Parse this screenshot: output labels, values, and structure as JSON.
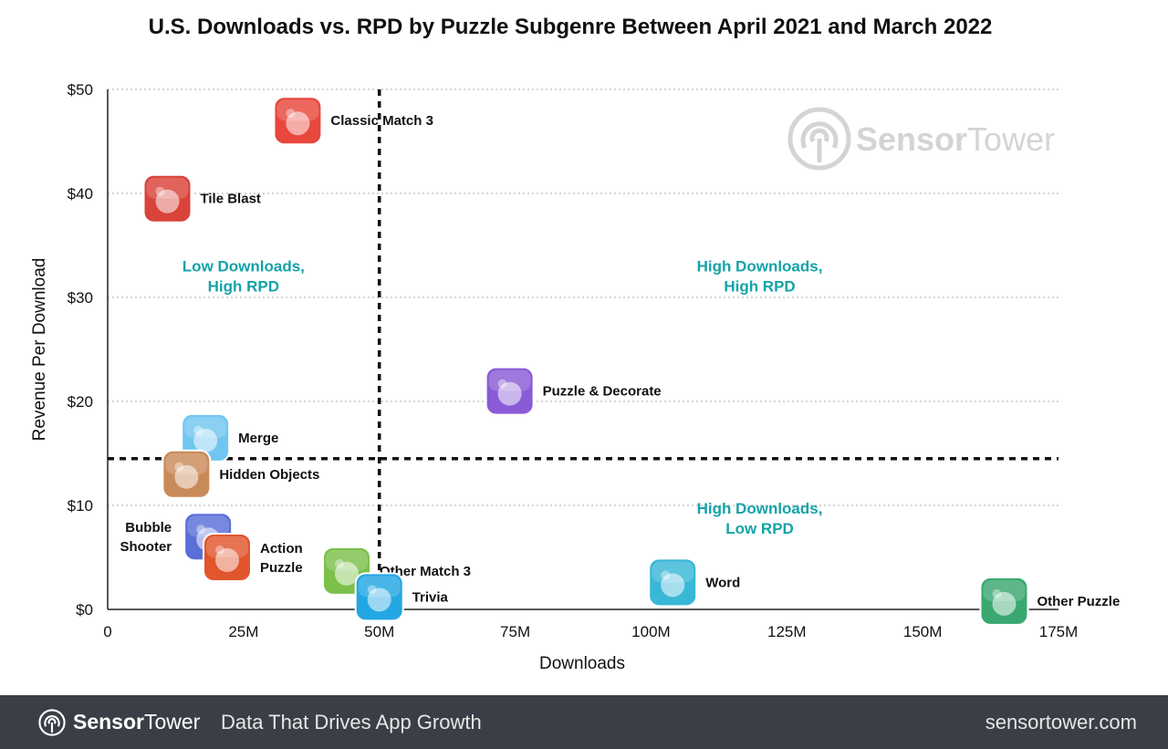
{
  "colors": {
    "quadrant_label": "#14a3a8",
    "grid": "#bbbbbb",
    "footer_bg": "#3a3f47",
    "watermark": "#d4d4d4"
  },
  "chart_data": {
    "type": "scatter",
    "title": "U.S. Downloads vs. RPD by Puzzle Subgenre Between April 2021 and March 2022",
    "xlabel": "Downloads",
    "ylabel": "Revenue Per Download",
    "xlim": [
      0,
      175000000
    ],
    "ylim": [
      0,
      50
    ],
    "x_ticks": [
      {
        "value": 0,
        "label": "0"
      },
      {
        "value": 25000000,
        "label": "25M"
      },
      {
        "value": 50000000,
        "label": "50M"
      },
      {
        "value": 75000000,
        "label": "75M"
      },
      {
        "value": 100000000,
        "label": "100M"
      },
      {
        "value": 125000000,
        "label": "125M"
      },
      {
        "value": 150000000,
        "label": "150M"
      },
      {
        "value": 175000000,
        "label": "175M"
      }
    ],
    "y_ticks": [
      {
        "value": 0,
        "label": "$0"
      },
      {
        "value": 10,
        "label": "$10"
      },
      {
        "value": 20,
        "label": "$20"
      },
      {
        "value": 30,
        "label": "$30"
      },
      {
        "value": 40,
        "label": "$40"
      },
      {
        "value": 50,
        "label": "$50"
      }
    ],
    "grid": "horizontal dotted",
    "divider_x": 50000000,
    "divider_y": 14.5,
    "points": [
      {
        "name": "Classic Match 3",
        "x": 35000000,
        "y": 47,
        "icon": "candy-icon",
        "color": "#e8473c",
        "label_side": "right"
      },
      {
        "name": "Tile Blast",
        "x": 11000000,
        "y": 39.5,
        "icon": "bear-icon",
        "color": "#d9433a",
        "label_side": "right"
      },
      {
        "name": "Puzzle & Decorate",
        "x": 74000000,
        "y": 21,
        "icon": "butler-icon",
        "color": "#8a5bd6",
        "label_side": "right"
      },
      {
        "name": "Merge",
        "x": 18000000,
        "y": 16.5,
        "icon": "egg-icon",
        "color": "#6fc6f0",
        "label_side": "right"
      },
      {
        "name": "Hidden Objects",
        "x": 14500000,
        "y": 13,
        "icon": "detective-icon",
        "color": "#c98a5a",
        "label_side": "right"
      },
      {
        "name": "Bubble Shooter",
        "x": 18500000,
        "y": 7,
        "icon": "bubble-icon",
        "color": "#5a6fd8",
        "label_side": "left"
      },
      {
        "name": "Action Puzzle",
        "x": 22000000,
        "y": 5,
        "icon": "bird-icon",
        "color": "#e1562d",
        "label_side": "right"
      },
      {
        "name": "Other Match 3",
        "x": 44000000,
        "y": 3.7,
        "icon": "leaf-icon",
        "color": "#7cc04b",
        "label_side": "right"
      },
      {
        "name": "Trivia",
        "x": 50000000,
        "y": 1.2,
        "icon": "brain-icon",
        "color": "#23a7e3",
        "label_side": "right"
      },
      {
        "name": "Word",
        "x": 104000000,
        "y": 2.6,
        "icon": "word-icon",
        "color": "#39b7d6",
        "label_side": "right"
      },
      {
        "name": "Other Puzzle",
        "x": 165000000,
        "y": 0.8,
        "icon": "dots-icon",
        "color": "#3aa870",
        "label_side": "right"
      }
    ],
    "annotations": [
      {
        "lines": [
          "Low Downloads,",
          "High RPD"
        ],
        "x": 25000000,
        "y": 32.5
      },
      {
        "lines": [
          "High Downloads,",
          "High RPD"
        ],
        "x": 120000000,
        "y": 32.5
      },
      {
        "lines": [
          "High Downloads,",
          "Low RPD"
        ],
        "x": 120000000,
        "y": 9.2
      }
    ]
  },
  "watermark": {
    "brand_a": "Sensor",
    "brand_b": "Tower"
  },
  "footer": {
    "brand_a": "Sensor",
    "brand_b": "Tower",
    "tagline": "Data That Drives App Growth",
    "url": "sensortower.com"
  }
}
